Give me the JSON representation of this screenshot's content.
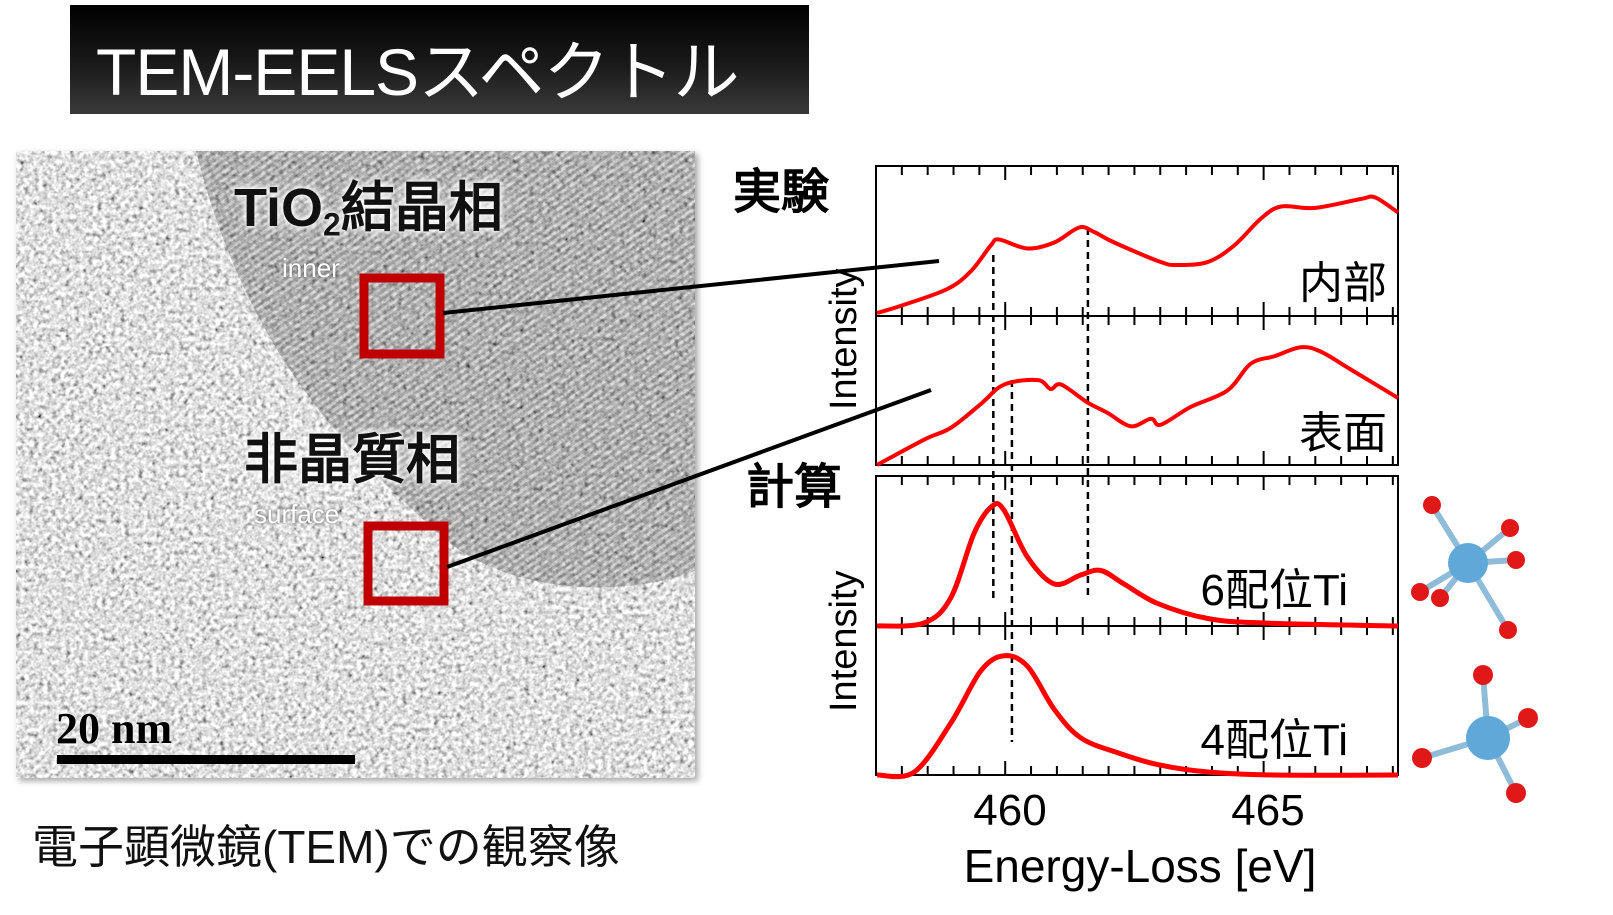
{
  "title": "TEM-EELSスペクトル",
  "tem_image": {
    "crystal_label_prefix": "TiO",
    "crystal_label_sub": "2",
    "crystal_label_suffix": "結晶相",
    "inner_label": "inner",
    "amorphous_label": "非晶質相",
    "surface_label": "surface",
    "scale_label": "20 nm",
    "caption": "電子顕微鏡(TEM)での観察像"
  },
  "colors": {
    "curve": "#ff0000",
    "roi_box": "#c00000",
    "atom_center": "#5fa8d8",
    "atom_ligand": "#e01818"
  },
  "chart_data": {
    "type": "line",
    "xlabel": "Energy-Loss [eV]",
    "ylabel": "Intensity",
    "xlim": [
      457.5,
      467.6
    ],
    "x_ticks": [
      460,
      465
    ],
    "x_tick_labels": [
      "460",
      "465"
    ],
    "group_labels": {
      "experiment": "実験",
      "calculation": "計算"
    },
    "reference_lines_eV": [
      459.77,
      460.13,
      461.6
    ],
    "series": [
      {
        "name": "内部",
        "group": "experiment",
        "x": [
          457.52,
          458.0,
          458.88,
          459.34,
          459.72,
          459.88,
          460.43,
          460.95,
          461.43,
          461.72,
          462.11,
          463.01,
          463.34,
          463.92,
          464.43,
          464.95,
          465.34,
          465.98,
          466.88,
          467.16,
          467.6
        ],
        "y": [
          0.02,
          0.07,
          0.18,
          0.3,
          0.47,
          0.51,
          0.45,
          0.49,
          0.59,
          0.56,
          0.49,
          0.36,
          0.34,
          0.36,
          0.47,
          0.65,
          0.73,
          0.72,
          0.78,
          0.79,
          0.69
        ]
      },
      {
        "name": "表面",
        "group": "experiment",
        "x": [
          457.52,
          458.43,
          458.95,
          459.53,
          459.98,
          460.63,
          460.88,
          461.08,
          461.59,
          461.98,
          462.43,
          462.82,
          463.01,
          463.59,
          464.3,
          464.75,
          465.21,
          465.72,
          466.11,
          466.69,
          467.6
        ],
        "y": [
          0.0,
          0.17,
          0.25,
          0.41,
          0.54,
          0.57,
          0.51,
          0.54,
          0.42,
          0.35,
          0.26,
          0.31,
          0.27,
          0.39,
          0.5,
          0.68,
          0.73,
          0.79,
          0.76,
          0.64,
          0.45
        ]
      },
      {
        "name": "6配位Ti",
        "group": "calculation",
        "x": [
          457.52,
          458.43,
          458.95,
          459.4,
          459.75,
          459.98,
          460.43,
          460.95,
          461.46,
          461.85,
          462.3,
          462.95,
          463.92,
          465.01,
          467.6
        ],
        "y": [
          0.0,
          0.02,
          0.19,
          0.62,
          0.8,
          0.77,
          0.46,
          0.28,
          0.34,
          0.37,
          0.28,
          0.15,
          0.05,
          0.02,
          0.0
        ]
      },
      {
        "name": "4配位Ti",
        "group": "calculation",
        "x": [
          457.52,
          458.24,
          458.95,
          459.53,
          459.98,
          460.43,
          460.95,
          461.46,
          462.17,
          462.95,
          463.92,
          465.2,
          467.6
        ],
        "y": [
          0.0,
          0.02,
          0.35,
          0.7,
          0.8,
          0.73,
          0.44,
          0.25,
          0.15,
          0.07,
          0.02,
          0.0,
          0.0
        ]
      }
    ]
  }
}
